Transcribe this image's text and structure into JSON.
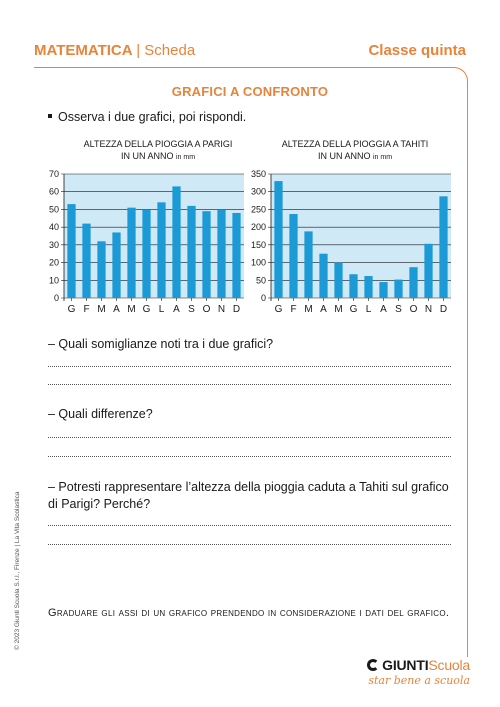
{
  "header": {
    "subject": "MATEMATICA",
    "separator": "|",
    "sheet": "Scheda",
    "grade": "Classe quinta"
  },
  "title": "GRAFICI A CONFRONTO",
  "instruction": "Osserva i due grafici, poi rispondi.",
  "charts": [
    {
      "title_line1": "ALTEZZA DELLA PIOGGIA A PARIGI",
      "title_line2": "IN UN ANNO",
      "unit": "in mm",
      "chart_data": {
        "type": "bar",
        "categories": [
          "G",
          "F",
          "M",
          "A",
          "M",
          "G",
          "L",
          "A",
          "S",
          "O",
          "N",
          "D"
        ],
        "values": [
          53,
          42,
          32,
          37,
          51,
          50,
          54,
          63,
          52,
          49,
          50,
          48
        ],
        "ylim": [
          0,
          70
        ],
        "yticks": [
          0,
          10,
          20,
          30,
          40,
          50,
          60,
          70
        ],
        "grid": true,
        "bar_color": "#1b9ad6",
        "bg_color": "#cfe9f7"
      }
    },
    {
      "title_line1": "ALTEZZA DELLA PIOGGIA A TAHITI",
      "title_line2": "IN UN ANNO",
      "unit": "in mm",
      "chart_data": {
        "type": "bar",
        "categories": [
          "G",
          "F",
          "M",
          "A",
          "M",
          "G",
          "L",
          "A",
          "S",
          "O",
          "N",
          "D"
        ],
        "values": [
          330,
          237,
          188,
          125,
          100,
          67,
          62,
          45,
          52,
          87,
          153,
          287
        ],
        "ylim": [
          0,
          350
        ],
        "yticks": [
          0,
          50,
          100,
          150,
          200,
          250,
          300,
          350
        ],
        "grid": true,
        "bar_color": "#1b9ad6",
        "bg_color": "#cfe9f7"
      }
    }
  ],
  "questions": [
    "– Quali somiglianze noti tra i due grafici?",
    "– Quali differenze?",
    "– Potresti rappresentare l’altezza della pioggia caduta a Tahiti sul grafico di Parigi? Perché?"
  ],
  "note": "Graduare gli assi di un grafico prendendo in considerazione i dati del grafico.",
  "copyright": "© 2023 Giunti Scuola S.r.l., Firenze | La Vita Scolastica",
  "logo": {
    "giunti": "GIUNTI",
    "scuola": "Scuola",
    "tagline": "star bene a scuola",
    "icon": "giunti-circle-icon"
  },
  "colors": {
    "accent": "#e8833a",
    "bar": "#1b9ad6",
    "plot_bg": "#cfe9f7"
  }
}
